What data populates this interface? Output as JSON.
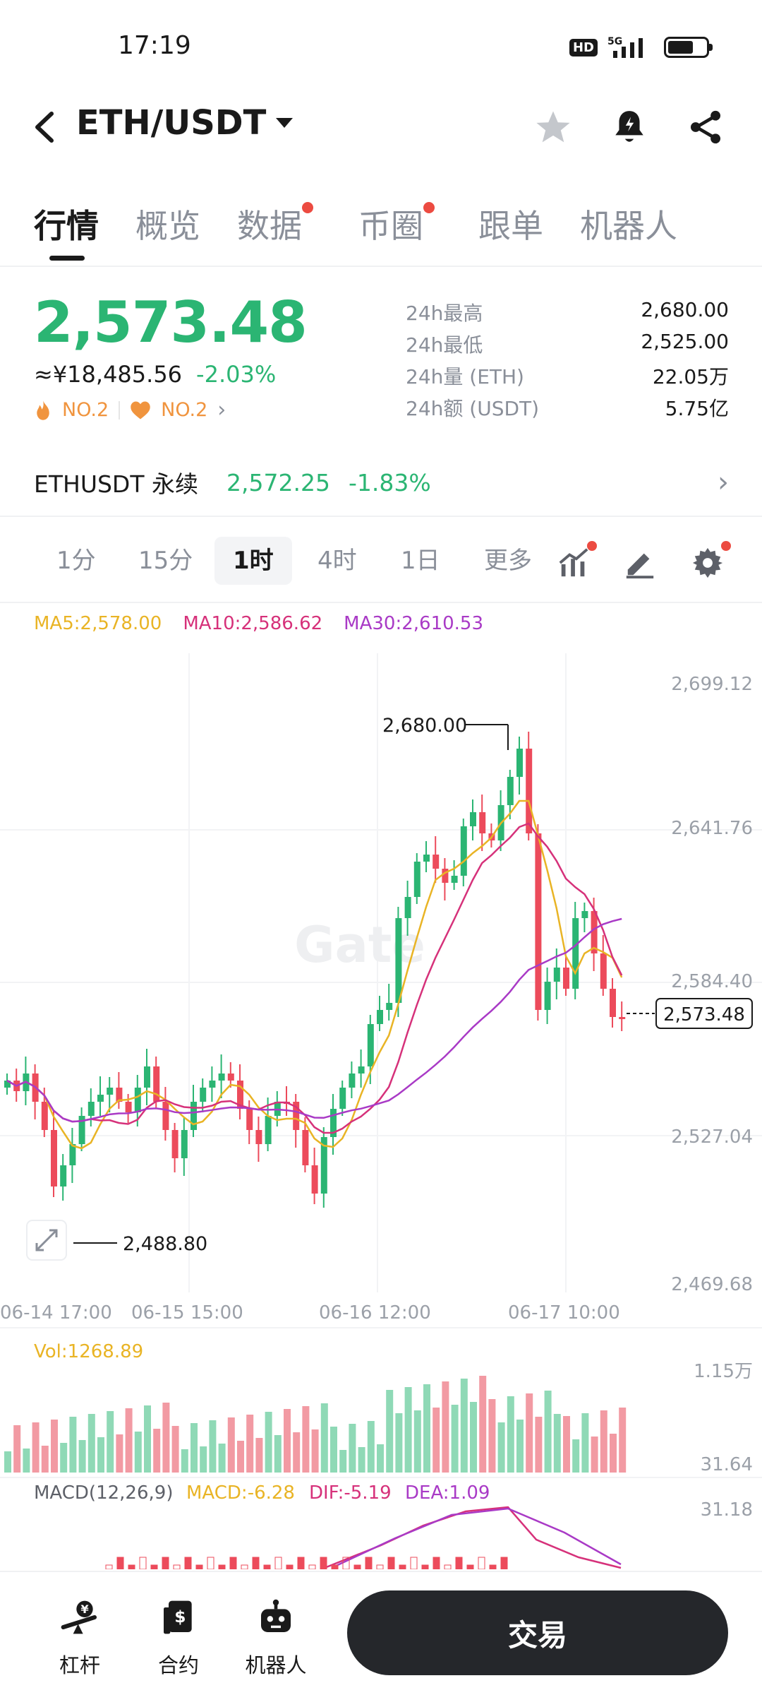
{
  "status": {
    "time": "17:19",
    "network": "5G",
    "hd": "HD"
  },
  "header": {
    "title": "ETH/USDT"
  },
  "tabs": [
    {
      "label": "行情",
      "dot": false
    },
    {
      "label": "概览",
      "dot": false
    },
    {
      "label": "数据",
      "dot": true
    },
    {
      "label": "币圈",
      "dot": true
    },
    {
      "label": "跟单",
      "dot": false
    },
    {
      "label": "机器人",
      "dot": false
    }
  ],
  "price": {
    "last": "2,573.48",
    "cny": "≈¥18,485.56",
    "change": "-2.03%",
    "rank1": "NO.2",
    "rank2": "NO.2"
  },
  "stats": [
    {
      "label": "24h最高",
      "value": "2,680.00"
    },
    {
      "label": "24h最低",
      "value": "2,525.00"
    },
    {
      "label": "24h量 (ETH)",
      "value": "22.05万"
    },
    {
      "label": "24h额 (USDT)",
      "value": "5.75亿"
    }
  ],
  "perp": {
    "name": "ETHUSDT 永续",
    "price": "2,572.25",
    "change": "-1.83%"
  },
  "intervals": [
    "1分",
    "15分",
    "1时",
    "4时",
    "1日",
    "更多"
  ],
  "active_interval": "1时",
  "ma": {
    "ma5": "MA5:2,578.00",
    "ma10": "MA10:2,586.62",
    "ma30": "MA30:2,610.53"
  },
  "chart_labels": {
    "high_marker": "2,680.00",
    "low_marker": "2,488.80",
    "last_tag": "2,573.48",
    "watermark": "Gate",
    "y_ticks": [
      "2,699.12",
      "2,641.76",
      "2,584.40",
      "2,527.04",
      "2,469.68"
    ],
    "x_ticks": [
      "06-14 17:00",
      "06-15 15:00",
      "06-16 12:00",
      "06-17 10:00"
    ],
    "vol_label": "Vol:1268.89",
    "vol_ticks": [
      "1.15万",
      "31.64"
    ],
    "macd_label": "MACD(12,26,9)",
    "macd_val": "MACD:-6.28",
    "dif_val": "DIF:-5.19",
    "dea_val": "DEA:1.09",
    "macd_tick": "31.18"
  },
  "colors": {
    "up": "#2bb573",
    "down": "#ec4b5b",
    "ma5": "#e9b425",
    "ma10": "#d6317a",
    "ma30": "#a93ac6"
  },
  "nav": [
    {
      "label": "杠杆",
      "icon": "leverage-icon"
    },
    {
      "label": "合约",
      "icon": "contract-icon"
    },
    {
      "label": "机器人",
      "icon": "robot-icon"
    }
  ],
  "trade_button": "交易"
}
